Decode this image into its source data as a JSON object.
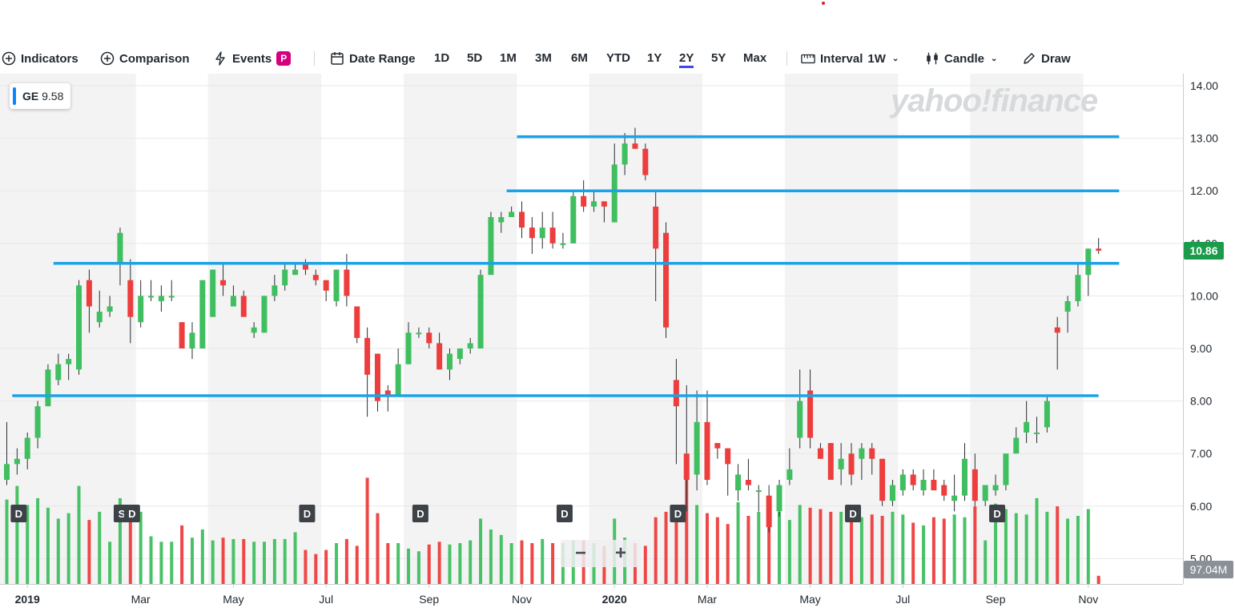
{
  "toolbar": {
    "indicators": "Indicators",
    "comparison": "Comparison",
    "events": "Events",
    "events_badge": "P",
    "date_range": "Date Range",
    "ranges": [
      "1D",
      "5D",
      "1M",
      "3M",
      "6M",
      "YTD",
      "1Y",
      "2Y",
      "5Y",
      "Max"
    ],
    "active_range": "2Y",
    "interval_label": "Interval",
    "interval_value": "1W",
    "chart_type": "Candle",
    "draw": "Draw"
  },
  "legend": {
    "symbol": "GE",
    "value": "9.58"
  },
  "watermark": "yahoo!finance",
  "zoom": {
    "minus": "−",
    "plus": "+"
  },
  "colors": {
    "up": "#3fbf5f",
    "down": "#ee3d3d",
    "hline": "#1aa3e8",
    "price_tag": "#1a9c4a",
    "band": "#f3f3f3"
  },
  "chart_data": {
    "type": "candlestick",
    "symbol": "GE",
    "interval": "1W",
    "y_ticks": [
      "14.00",
      "13.00",
      "12.00",
      "11.00",
      "10.00",
      "9.00",
      "8.00",
      "7.00",
      "6.00",
      "5.00"
    ],
    "ylim": [
      4.5,
      14.3
    ],
    "x_labels": [
      "2019",
      "Mar",
      "May",
      "Jul",
      "Sep",
      "Nov",
      "2020",
      "Mar",
      "May",
      "Jul",
      "Sep",
      "Nov"
    ],
    "x_label_index": [
      2,
      13,
      22,
      31,
      41,
      50,
      59,
      68,
      78,
      87,
      96,
      105
    ],
    "current_price": "10.86",
    "volume_tag": "97.04M",
    "candles": [
      [
        6.5,
        7.6,
        6.4,
        6.8
      ],
      [
        6.8,
        7.1,
        6.6,
        6.9
      ],
      [
        6.9,
        7.4,
        6.7,
        7.3
      ],
      [
        7.3,
        8.0,
        7.1,
        7.9
      ],
      [
        7.9,
        8.7,
        7.9,
        8.6
      ],
      [
        8.4,
        8.9,
        8.3,
        8.7
      ],
      [
        8.7,
        8.9,
        8.4,
        8.8
      ],
      [
        8.6,
        10.3,
        8.5,
        10.2
      ],
      [
        10.3,
        10.5,
        9.3,
        9.8
      ],
      [
        9.5,
        10.1,
        9.4,
        9.7
      ],
      [
        9.7,
        10.0,
        9.6,
        9.8
      ],
      [
        10.6,
        11.3,
        10.2,
        11.2
      ],
      [
        10.3,
        10.7,
        9.1,
        9.6
      ],
      [
        9.5,
        10.3,
        9.4,
        10.0
      ],
      [
        10.0,
        10.3,
        9.9,
        10.0
      ],
      [
        9.9,
        10.2,
        9.7,
        10.0
      ],
      [
        10.0,
        10.3,
        9.9,
        10.0
      ],
      [
        9.5,
        9.5,
        9.0,
        9.0
      ],
      [
        9.0,
        9.5,
        8.8,
        9.3
      ],
      [
        9.0,
        10.3,
        9.0,
        10.3
      ],
      [
        9.6,
        10.5,
        9.6,
        10.5
      ],
      [
        10.3,
        10.6,
        10.0,
        10.2
      ],
      [
        9.8,
        10.2,
        9.8,
        10.0
      ],
      [
        10.0,
        10.1,
        9.6,
        9.6
      ],
      [
        9.3,
        9.5,
        9.2,
        9.4
      ],
      [
        9.3,
        10.0,
        9.3,
        10.0
      ],
      [
        10.0,
        10.4,
        9.9,
        10.2
      ],
      [
        10.2,
        10.6,
        10.1,
        10.5
      ],
      [
        10.4,
        10.6,
        10.4,
        10.5
      ],
      [
        10.6,
        10.7,
        10.4,
        10.5
      ],
      [
        10.4,
        10.5,
        10.2,
        10.3
      ],
      [
        10.3,
        10.3,
        9.9,
        10.1
      ],
      [
        9.9,
        10.5,
        9.8,
        10.5
      ],
      [
        10.5,
        10.8,
        9.8,
        10.0
      ],
      [
        9.8,
        9.8,
        9.1,
        9.2
      ],
      [
        9.2,
        9.4,
        7.7,
        8.5
      ],
      [
        8.9,
        8.9,
        7.8,
        8.0
      ],
      [
        8.2,
        8.3,
        7.8,
        8.1
      ],
      [
        8.1,
        9.0,
        8.1,
        8.7
      ],
      [
        8.7,
        9.5,
        8.7,
        9.3
      ],
      [
        9.3,
        9.4,
        9.2,
        9.3
      ],
      [
        9.3,
        9.4,
        9.0,
        9.1
      ],
      [
        9.1,
        9.3,
        8.6,
        8.6
      ],
      [
        8.6,
        9.0,
        8.4,
        8.9
      ],
      [
        8.8,
        9.0,
        8.7,
        9.0
      ],
      [
        9.0,
        9.2,
        8.9,
        9.1
      ],
      [
        9.0,
        10.5,
        9.0,
        10.4
      ],
      [
        10.4,
        11.6,
        10.4,
        11.5
      ],
      [
        11.4,
        11.6,
        11.2,
        11.5
      ],
      [
        11.5,
        11.7,
        11.5,
        11.6
      ],
      [
        11.6,
        11.8,
        11.1,
        11.3
      ],
      [
        11.3,
        11.5,
        10.8,
        11.1
      ],
      [
        11.1,
        11.6,
        10.9,
        11.3
      ],
      [
        11.3,
        11.6,
        10.9,
        11.0
      ],
      [
        11.0,
        11.2,
        10.9,
        11.0
      ],
      [
        11.0,
        12.0,
        11.0,
        11.9
      ],
      [
        11.9,
        12.2,
        11.6,
        11.7
      ],
      [
        11.7,
        12.0,
        11.6,
        11.8
      ],
      [
        11.8,
        11.8,
        11.4,
        11.7
      ],
      [
        11.4,
        12.9,
        11.4,
        12.5
      ],
      [
        12.5,
        13.1,
        12.3,
        12.9
      ],
      [
        12.9,
        13.2,
        12.8,
        12.8
      ],
      [
        12.8,
        12.9,
        12.2,
        12.3
      ],
      [
        11.7,
        12.0,
        9.9,
        10.9
      ],
      [
        11.2,
        11.4,
        9.2,
        9.4
      ],
      [
        8.4,
        8.8,
        6.8,
        7.9
      ],
      [
        7.0,
        8.3,
        5.9,
        6.5
      ],
      [
        6.6,
        8.2,
        6.3,
        7.6
      ],
      [
        7.6,
        8.2,
        6.4,
        6.5
      ],
      [
        7.2,
        7.2,
        6.9,
        7.1
      ],
      [
        7.1,
        7.1,
        6.2,
        6.8
      ],
      [
        6.3,
        6.8,
        6.1,
        6.6
      ],
      [
        6.5,
        6.9,
        6.3,
        6.4
      ],
      [
        6.3,
        6.4,
        5.9,
        6.3
      ],
      [
        6.2,
        6.4,
        5.5,
        5.6
      ],
      [
        5.9,
        6.5,
        5.8,
        6.4
      ],
      [
        6.5,
        7.1,
        6.4,
        6.7
      ],
      [
        7.3,
        8.6,
        7.1,
        8.0
      ],
      [
        8.2,
        8.6,
        7.1,
        7.3
      ],
      [
        7.1,
        7.2,
        6.9,
        6.9
      ],
      [
        7.2,
        7.2,
        6.5,
        6.5
      ],
      [
        6.7,
        7.2,
        6.4,
        6.9
      ],
      [
        7.0,
        7.2,
        6.4,
        6.6
      ],
      [
        6.9,
        7.2,
        6.5,
        7.1
      ],
      [
        7.1,
        7.2,
        6.6,
        6.9
      ],
      [
        6.9,
        6.9,
        6.0,
        6.1
      ],
      [
        6.1,
        6.5,
        6.0,
        6.4
      ],
      [
        6.3,
        6.7,
        6.2,
        6.6
      ],
      [
        6.6,
        6.7,
        6.3,
        6.4
      ],
      [
        6.3,
        6.7,
        6.2,
        6.5
      ],
      [
        6.5,
        6.7,
        6.3,
        6.3
      ],
      [
        6.4,
        6.5,
        6.1,
        6.2
      ],
      [
        6.1,
        6.6,
        5.9,
        6.2
      ],
      [
        6.2,
        7.2,
        6.1,
        6.9
      ],
      [
        6.7,
        7.0,
        6.0,
        6.1
      ],
      [
        6.1,
        6.4,
        6.0,
        6.4
      ],
      [
        6.3,
        6.6,
        6.2,
        6.4
      ],
      [
        6.4,
        7.0,
        6.3,
        7.0
      ],
      [
        7.0,
        7.5,
        7.0,
        7.3
      ],
      [
        7.4,
        8.0,
        7.2,
        7.6
      ],
      [
        7.4,
        7.7,
        7.2,
        7.4
      ],
      [
        7.5,
        8.1,
        7.4,
        8.0
      ],
      [
        9.4,
        9.6,
        8.6,
        9.3
      ],
      [
        9.7,
        10.0,
        9.3,
        9.9
      ],
      [
        9.9,
        10.6,
        9.8,
        10.4
      ],
      [
        10.4,
        10.9,
        10.0,
        10.9
      ],
      [
        10.9,
        11.1,
        10.8,
        10.86
      ]
    ],
    "volume": [
      0.62,
      0.72,
      0.58,
      0.63,
      0.56,
      0.48,
      0.52,
      0.72,
      0.47,
      0.53,
      0.31,
      0.63,
      0.55,
      0.53,
      0.35,
      0.31,
      0.31,
      0.43,
      0.34,
      0.4,
      0.32,
      0.34,
      0.33,
      0.33,
      0.31,
      0.31,
      0.33,
      0.33,
      0.38,
      0.25,
      0.22,
      0.25,
      0.3,
      0.33,
      0.28,
      0.78,
      0.52,
      0.3,
      0.3,
      0.26,
      0.24,
      0.29,
      0.31,
      0.29,
      0.3,
      0.32,
      0.48,
      0.4,
      0.36,
      0.3,
      0.32,
      0.3,
      0.33,
      0.3,
      0.3,
      0.32,
      0.32,
      0.3,
      0.28,
      0.48,
      0.34,
      0.3,
      0.28,
      0.49,
      0.53,
      0.5,
      0.77,
      0.58,
      0.52,
      0.49,
      0.44,
      0.6,
      0.5,
      0.53,
      0.58,
      0.53,
      0.47,
      0.58,
      0.56,
      0.55,
      0.53,
      0.53,
      0.49,
      0.49,
      0.51,
      0.5,
      0.53,
      0.51,
      0.45,
      0.43,
      0.49,
      0.48,
      0.51,
      0.49,
      0.57,
      0.32,
      0.59,
      0.55,
      0.52,
      0.51,
      0.63,
      0.53,
      0.57,
      0.48,
      0.5,
      0.55,
      0.06
    ],
    "volume_ylim": [
      0,
      1
    ],
    "horizontal_lines": [
      {
        "value": 13.03,
        "from": 50,
        "to": 108
      },
      {
        "value": 12.0,
        "from": 49,
        "to": 108
      },
      {
        "value": 10.62,
        "from": 5,
        "to": 108
      },
      {
        "value": 8.1,
        "from": 1,
        "to": 106
      }
    ],
    "events": [
      {
        "label": "D",
        "index": 1
      },
      {
        "label": "S",
        "index": 11
      },
      {
        "label": "D",
        "index": 12
      },
      {
        "label": "D",
        "index": 29
      },
      {
        "label": "D",
        "index": 40
      },
      {
        "label": "D",
        "index": 54
      },
      {
        "label": "D",
        "index": 65
      },
      {
        "label": "D",
        "index": 82
      },
      {
        "label": "D",
        "index": 96
      }
    ]
  }
}
